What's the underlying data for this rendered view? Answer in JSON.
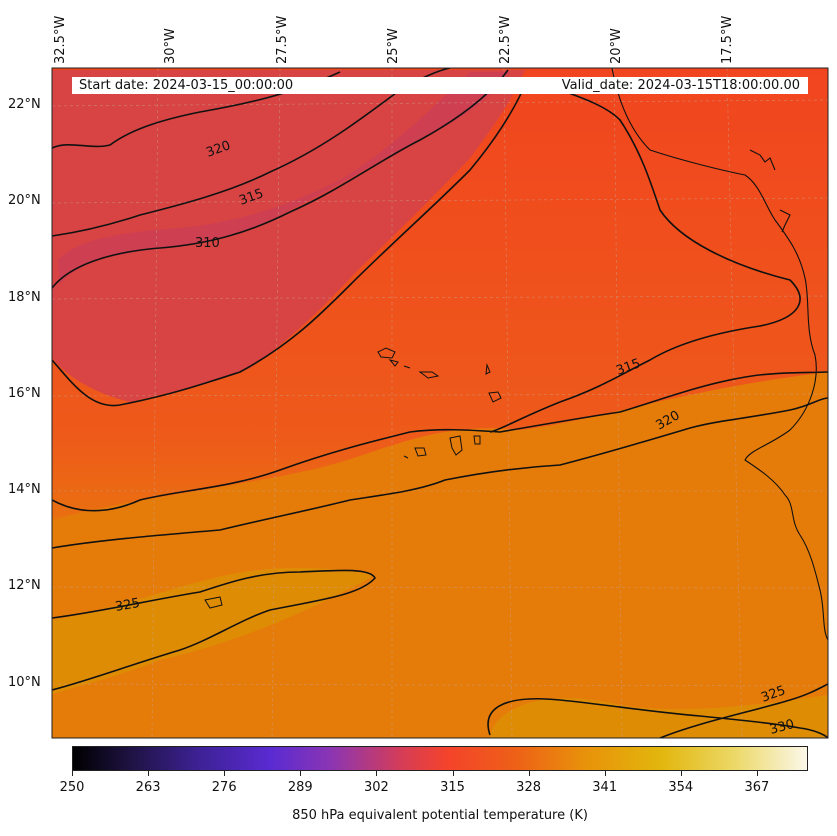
{
  "map": {
    "start_date": "Start date: 2024-03-15_00:00:00",
    "valid_date": "Valid_date: 2024-03-15T18:00:00.00",
    "longitude_labels": [
      "32.5°W",
      "30°W",
      "27.5°W",
      "25°W",
      "22.5°W",
      "20°W",
      "17.5°W"
    ],
    "latitude_labels": [
      "22°N",
      "20°N",
      "18°N",
      "16°N",
      "14°N",
      "12°N",
      "10°N"
    ],
    "contour_labels": [
      "320",
      "315",
      "310",
      "315",
      "320",
      "325",
      "325",
      "330"
    ],
    "colors": {
      "background_warm": "#f2461f",
      "cool_band": "#d9414a",
      "warm_south": "#e27f08",
      "contour": "#111111",
      "gridline": "#c8a08c"
    }
  },
  "colorbar": {
    "title": "850 hPa equivalent potential temperature (K)",
    "ticks": [
      "250",
      "263",
      "276",
      "289",
      "302",
      "315",
      "328",
      "341",
      "354",
      "367"
    ]
  }
}
